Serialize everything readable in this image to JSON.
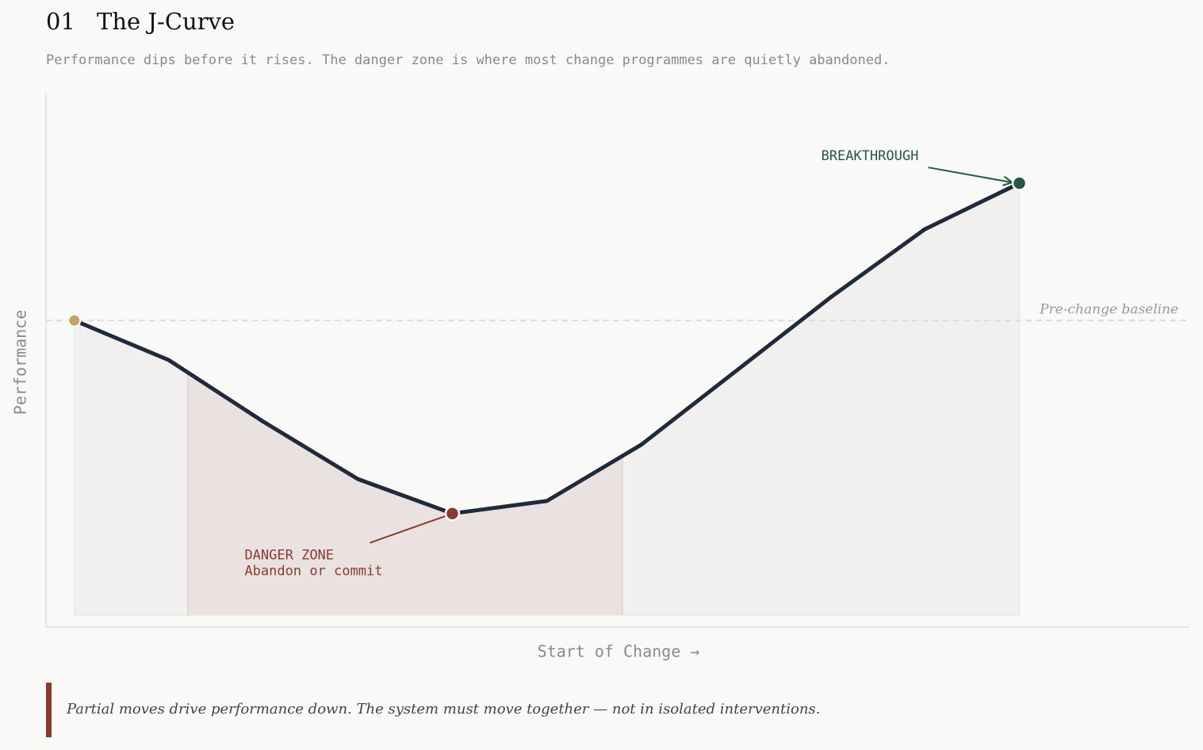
{
  "chart_data": {
    "type": "line",
    "number": "01",
    "title": "The J-Curve",
    "subtitle": "Performance dips before it rises. The danger zone is where most change programmes are quietly abandoned.",
    "ylabel": "Performance",
    "xlabel": "Start of Change  →",
    "x": [
      0,
      1,
      2,
      3,
      4,
      5,
      6,
      7,
      8,
      9,
      10
    ],
    "xlim": [
      -0.3,
      11.8
    ],
    "ylim": [
      0,
      100
    ],
    "series": [
      {
        "color": "#1f2a3a",
        "values": [
          56.5,
          48.9,
          37.1,
          26.1,
          19.5,
          21.9,
          32.7,
          46.8,
          60.9,
          74.0,
          82.8
        ]
      }
    ],
    "area_color": "#f1f0ee",
    "baseline": {
      "value": 56.5,
      "label": "Pre-change baseline"
    },
    "danger_zone": [
      1.2,
      5.8
    ],
    "danger_zone_color": "#e9e2e0",
    "start_color": "#c4a26a",
    "annotations": [
      {
        "point": 4,
        "lines": [
          "DANGER ZONE",
          "Abandon or commit"
        ],
        "color": "#8b3a2e"
      },
      {
        "point": 10,
        "lines": [
          "BREAKTHROUGH"
        ],
        "color": "#2a5646"
      }
    ],
    "footnote": "Partial moves drive performance down. The system must move together — not in isolated interventions.",
    "footnote_color": "#8b3a2e"
  }
}
